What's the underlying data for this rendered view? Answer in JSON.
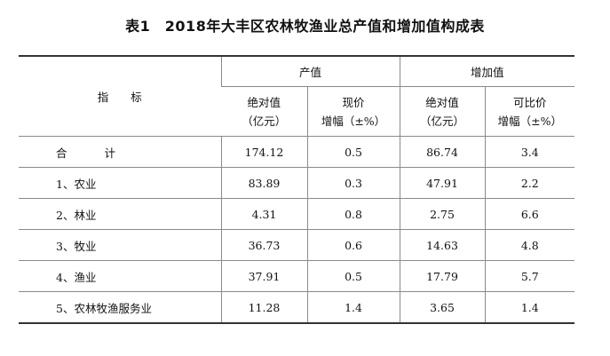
{
  "title": "表1　2018年大丰区农林牧渔业总产值和增加值构成表",
  "headers": {
    "indicator": "指　　标",
    "output_value": "产值",
    "added_value": "增加值",
    "abs_value_line1": "绝对值",
    "abs_value_line2": "（亿元）",
    "current_price_line1": "现价",
    "current_price_line2": "增幅（±%）",
    "comparable_price_line1": "可比价",
    "comparable_price_line2": "增幅（±%）"
  },
  "rows": [
    {
      "name_a": "合",
      "name_b": "计",
      "ov_abs": "174.12",
      "ov_growth": "0.5",
      "av_abs": "86.74",
      "av_growth": "3.4"
    },
    {
      "name": "1、农业",
      "ov_abs": "83.89",
      "ov_growth": "0.3",
      "av_abs": "47.91",
      "av_growth": "2.2"
    },
    {
      "name": "2、林业",
      "ov_abs": "4.31",
      "ov_growth": "0.8",
      "av_abs": "2.75",
      "av_growth": "6.6"
    },
    {
      "name": "3、牧业",
      "ov_abs": "36.73",
      "ov_growth": "0.6",
      "av_abs": "14.63",
      "av_growth": "4.8"
    },
    {
      "name": "4、渔业",
      "ov_abs": "37.91",
      "ov_growth": "0.5",
      "av_abs": "17.79",
      "av_growth": "5.7"
    },
    {
      "name": "5、农林牧渔服务业",
      "ov_abs": "11.28",
      "ov_growth": "1.4",
      "av_abs": "3.65",
      "av_growth": "1.4"
    }
  ]
}
